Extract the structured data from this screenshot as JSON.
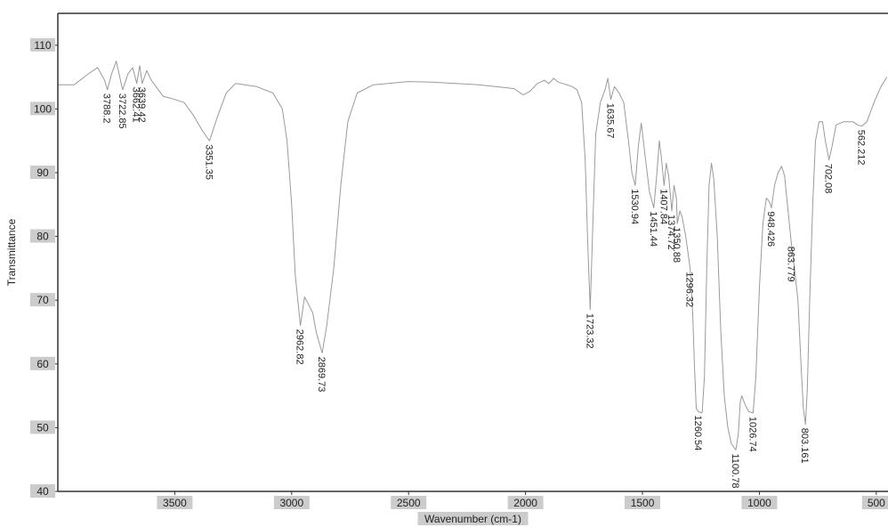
{
  "chart_data": {
    "type": "line",
    "xlabel": "Wavenumber (cm-1)",
    "ylabel": "Transmittance",
    "xlim": [
      4000,
      450
    ],
    "ylim": [
      40,
      115
    ],
    "x_ticks": [
      {
        "value": 3500,
        "label": "3500"
      },
      {
        "value": 3000,
        "label": "3000"
      },
      {
        "value": 2500,
        "label": "2500"
      },
      {
        "value": 2000,
        "label": "2000"
      },
      {
        "value": 1500,
        "label": "1500"
      },
      {
        "value": 1000,
        "label": "1000"
      },
      {
        "value": 500,
        "label": "500"
      }
    ],
    "y_ticks": [
      {
        "value": 110,
        "label": "110"
      },
      {
        "value": 100,
        "label": "100"
      },
      {
        "value": 90,
        "label": "90"
      },
      {
        "value": 80,
        "label": "80"
      },
      {
        "value": 70,
        "label": "70"
      },
      {
        "value": 60,
        "label": "60"
      },
      {
        "value": 50,
        "label": "50"
      },
      {
        "value": 40,
        "label": "40"
      }
    ],
    "grid": false,
    "series": [
      {
        "color": "#9a9a9a",
        "points": [
          [
            4000,
            103.8
          ],
          [
            3930,
            103.8
          ],
          [
            3870,
            105.5
          ],
          [
            3830,
            106.5
          ],
          [
            3800,
            104.5
          ],
          [
            3788.2,
            103.0
          ],
          [
            3770,
            105.5
          ],
          [
            3750,
            107.5
          ],
          [
            3735,
            105.0
          ],
          [
            3722.85,
            103.0
          ],
          [
            3700,
            105.5
          ],
          [
            3680,
            106.5
          ],
          [
            3662.41,
            104.0
          ],
          [
            3650,
            106.8
          ],
          [
            3639.42,
            104.0
          ],
          [
            3620,
            106.0
          ],
          [
            3600,
            104.5
          ],
          [
            3580,
            103.5
          ],
          [
            3550,
            102.0
          ],
          [
            3500,
            101.5
          ],
          [
            3460,
            101.0
          ],
          [
            3420,
            99.0
          ],
          [
            3380,
            96.5
          ],
          [
            3351.35,
            95.0
          ],
          [
            3320,
            98.5
          ],
          [
            3280,
            102.5
          ],
          [
            3240,
            104.0
          ],
          [
            3150,
            103.5
          ],
          [
            3080,
            102.5
          ],
          [
            3040,
            100.0
          ],
          [
            3020,
            95.0
          ],
          [
            3000,
            85.0
          ],
          [
            2985,
            74.0
          ],
          [
            2962.82,
            66.0
          ],
          [
            2945,
            70.5
          ],
          [
            2930,
            69.5
          ],
          [
            2910,
            68.0
          ],
          [
            2895,
            65.0
          ],
          [
            2880,
            63.0
          ],
          [
            2869.73,
            61.7
          ],
          [
            2850,
            66.0
          ],
          [
            2820,
            75.0
          ],
          [
            2790,
            88.0
          ],
          [
            2760,
            98.0
          ],
          [
            2720,
            102.5
          ],
          [
            2650,
            103.8
          ],
          [
            2500,
            104.3
          ],
          [
            2400,
            104.2
          ],
          [
            2200,
            103.8
          ],
          [
            2050,
            103.2
          ],
          [
            2010,
            102.2
          ],
          [
            1980,
            102.8
          ],
          [
            1950,
            104.0
          ],
          [
            1920,
            104.5
          ],
          [
            1900,
            104.0
          ],
          [
            1880,
            104.8
          ],
          [
            1860,
            104.2
          ],
          [
            1840,
            104.0
          ],
          [
            1800,
            103.5
          ],
          [
            1780,
            103.0
          ],
          [
            1760,
            101.0
          ],
          [
            1745,
            92.0
          ],
          [
            1735,
            80.0
          ],
          [
            1723.32,
            68.5
          ],
          [
            1712,
            82.0
          ],
          [
            1700,
            96.0
          ],
          [
            1680,
            101.0
          ],
          [
            1660,
            103.0
          ],
          [
            1648,
            104.8
          ],
          [
            1635.67,
            101.5
          ],
          [
            1620,
            103.5
          ],
          [
            1600,
            102.5
          ],
          [
            1580,
            101.0
          ],
          [
            1560,
            95.0
          ],
          [
            1545,
            90.0
          ],
          [
            1530.94,
            88.0
          ],
          [
            1518,
            94.0
          ],
          [
            1505,
            97.8
          ],
          [
            1490,
            93.0
          ],
          [
            1470,
            87.0
          ],
          [
            1451.44,
            84.5
          ],
          [
            1438,
            90.0
          ],
          [
            1428,
            95.0
          ],
          [
            1418,
            92.0
          ],
          [
            1407.84,
            88.0
          ],
          [
            1398,
            91.5
          ],
          [
            1388,
            89.5
          ],
          [
            1374.72,
            84.0
          ],
          [
            1365,
            88.0
          ],
          [
            1355,
            86.0
          ],
          [
            1350.88,
            82.0
          ],
          [
            1340,
            84.0
          ],
          [
            1330,
            83.0
          ],
          [
            1315,
            80.0
          ],
          [
            1296.32,
            75.0
          ],
          [
            1285,
            68.0
          ],
          [
            1278,
            60.0
          ],
          [
            1270,
            53.0
          ],
          [
            1260.54,
            52.5
          ],
          [
            1245,
            52.3
          ],
          [
            1235,
            58.0
          ],
          [
            1225,
            75.0
          ],
          [
            1215,
            88.0
          ],
          [
            1205,
            91.5
          ],
          [
            1195,
            89.0
          ],
          [
            1180,
            80.0
          ],
          [
            1165,
            65.0
          ],
          [
            1150,
            55.0
          ],
          [
            1135,
            50.0
          ],
          [
            1120,
            47.5
          ],
          [
            1100.78,
            46.5
          ],
          [
            1090,
            49.0
          ],
          [
            1082,
            54.0
          ],
          [
            1075,
            55.0
          ],
          [
            1060,
            53.5
          ],
          [
            1045,
            52.5
          ],
          [
            1026.74,
            52.3
          ],
          [
            1015,
            58.0
          ],
          [
            1000,
            72.0
          ],
          [
            985,
            82.0
          ],
          [
            970,
            86.0
          ],
          [
            958,
            85.5
          ],
          [
            948.426,
            84.5
          ],
          [
            935,
            88.0
          ],
          [
            920,
            90.0
          ],
          [
            905,
            91.0
          ],
          [
            892,
            89.5
          ],
          [
            880,
            85.0
          ],
          [
            863.779,
            79.0
          ],
          [
            850,
            75.0
          ],
          [
            835,
            70.0
          ],
          [
            822,
            60.0
          ],
          [
            812,
            53.0
          ],
          [
            803.161,
            50.5
          ],
          [
            795,
            56.0
          ],
          [
            785,
            70.0
          ],
          [
            772,
            85.0
          ],
          [
            760,
            95.0
          ],
          [
            745,
            98.0
          ],
          [
            730,
            98.0
          ],
          [
            718,
            95.0
          ],
          [
            702.08,
            92.0
          ],
          [
            690,
            94.0
          ],
          [
            672,
            97.5
          ],
          [
            640,
            98.0
          ],
          [
            600,
            98.0
          ],
          [
            580,
            97.5
          ],
          [
            562.212,
            97.3
          ],
          [
            540,
            98.0
          ],
          [
            510,
            101.0
          ],
          [
            480,
            103.5
          ],
          [
            455,
            105.0
          ]
        ]
      }
    ],
    "annotations": [
      {
        "label": "3788.2",
        "x": 3788.2,
        "y": 103.0
      },
      {
        "label": "3722.85",
        "x": 3722.85,
        "y": 103.0
      },
      {
        "label": "3662.41",
        "x": 3662.41,
        "y": 104.0
      },
      {
        "label": "3639.42",
        "x": 3639.42,
        "y": 104.0
      },
      {
        "label": "3351.35",
        "x": 3351.35,
        "y": 95.0
      },
      {
        "label": "2962.82",
        "x": 2962.82,
        "y": 66.0
      },
      {
        "label": "2869.73",
        "x": 2869.73,
        "y": 61.7
      },
      {
        "label": "1723.32",
        "x": 1723.32,
        "y": 68.5
      },
      {
        "label": "1635.67",
        "x": 1635.67,
        "y": 101.5
      },
      {
        "label": "1530.94",
        "x": 1530.94,
        "y": 88.0
      },
      {
        "label": "1451.44",
        "x": 1451.44,
        "y": 84.5
      },
      {
        "label": "1407.84",
        "x": 1407.84,
        "y": 88.0
      },
      {
        "label": "1374.72",
        "x": 1374.72,
        "y": 84.0
      },
      {
        "label": "1350.88",
        "x": 1350.88,
        "y": 82.0
      },
      {
        "label": "1296.32",
        "x": 1296.32,
        "y": 75.0
      },
      {
        "label": "1260.54",
        "x": 1260.54,
        "y": 52.5
      },
      {
        "label": "1100.78",
        "x": 1100.78,
        "y": 46.5
      },
      {
        "label": "1026.74",
        "x": 1026.74,
        "y": 52.3
      },
      {
        "label": "948.426",
        "x": 948.426,
        "y": 84.5
      },
      {
        "label": "863.779",
        "x": 863.779,
        "y": 79.0
      },
      {
        "label": "803.161",
        "x": 803.161,
        "y": 50.5
      },
      {
        "label": "702.08",
        "x": 702.08,
        "y": 92.0
      },
      {
        "label": "562.212",
        "x": 562.212,
        "y": 97.3
      }
    ]
  }
}
